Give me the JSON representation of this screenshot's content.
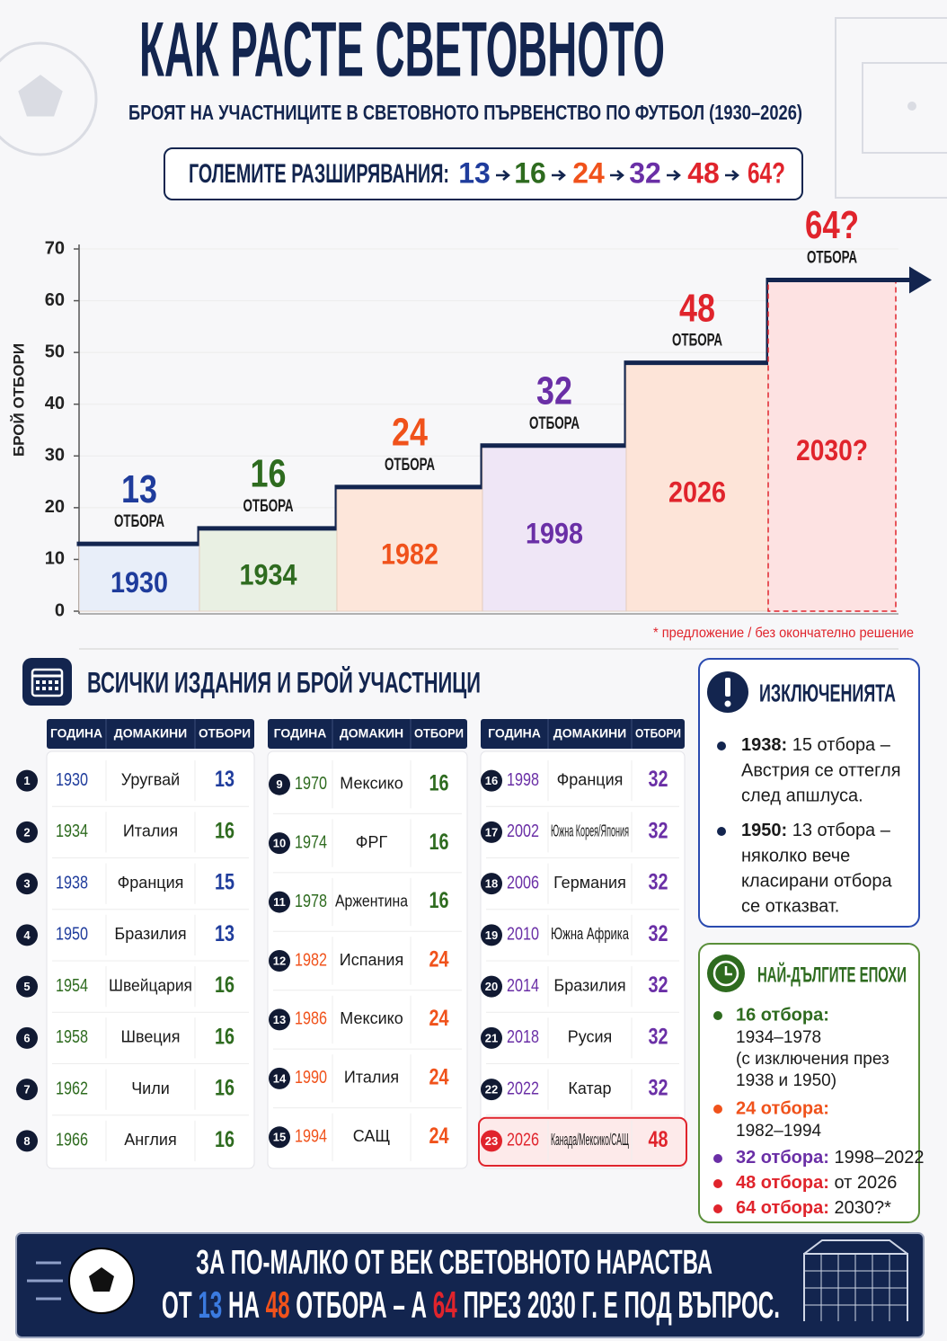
{
  "header": {
    "title": "КАК РАСТЕ СВЕТОВНОТО",
    "subtitle": "БРОЯТ НА УЧАСТНИЦИТЕ В СВЕТОВНОТО ПЪРВЕНСТВО ПО ФУТБОЛ (1930–2026)",
    "expansions_label": "ГОЛЕМИТЕ РАЗШИРЯВАНИЯ:",
    "expansions": [
      {
        "text": "13",
        "color": "#1f3c9c"
      },
      {
        "text": "16",
        "color": "#2e6b1f"
      },
      {
        "text": "24",
        "color": "#f0521b"
      },
      {
        "text": "32",
        "color": "#6a2fa6"
      },
      {
        "text": "48",
        "color": "#e0242c"
      },
      {
        "text": "64?",
        "color": "#e0242c"
      }
    ]
  },
  "chart_data": {
    "type": "step",
    "y_label": "БРОЙ ОТБОРИ",
    "categories": [
      "1930",
      "1934",
      "1982",
      "1998",
      "2026",
      "2030?"
    ],
    "values": [
      13,
      16,
      24,
      32,
      48,
      64
    ],
    "value_labels": [
      "13",
      "16",
      "24",
      "32",
      "48",
      "64?"
    ],
    "unit_label": "ОТБОРА",
    "colors": [
      "#1f3c9c",
      "#2e6b1f",
      "#f0521b",
      "#6a2fa6",
      "#e0242c",
      "#e0242c"
    ],
    "fill_colors": [
      "#e8eef9",
      "#e9f0e3",
      "#fde6da",
      "#efe6f6",
      "#fde4d8",
      "#fde2e2"
    ],
    "line_color": "#13254f",
    "ylim": [
      0,
      70
    ],
    "yticks": [
      0,
      10,
      20,
      30,
      40,
      50,
      60,
      70
    ],
    "grid": true,
    "footnote": "* предложение / без окончателно решение"
  },
  "table": {
    "title": "ВСИЧКИ ИЗДАНИЯ И БРОЙ УЧАСТНИЦИ",
    "panels": [
      {
        "columns": [
          "ГОДИНА",
          "ДОМАКИНИ",
          "ОТБОРИ"
        ],
        "rows": [
          {
            "no": "1",
            "year": "1930",
            "host": "Уругвай",
            "teams": "13",
            "color": "#1f3c9c"
          },
          {
            "no": "2",
            "year": "1934",
            "host": "Италия",
            "teams": "16",
            "color": "#2e6b1f"
          },
          {
            "no": "3",
            "year": "1938",
            "host": "Франция",
            "teams": "15",
            "color": "#1f3c9c"
          },
          {
            "no": "4",
            "year": "1950",
            "host": "Бразилия",
            "teams": "13",
            "color": "#1f3c9c"
          },
          {
            "no": "5",
            "year": "1954",
            "host": "Швейцария",
            "teams": "16",
            "color": "#2e6b1f"
          },
          {
            "no": "6",
            "year": "1958",
            "host": "Швеция",
            "teams": "16",
            "color": "#2e6b1f"
          },
          {
            "no": "7",
            "year": "1962",
            "host": "Чили",
            "teams": "16",
            "color": "#2e6b1f"
          },
          {
            "no": "8",
            "year": "1966",
            "host": "Англия",
            "teams": "16",
            "color": "#2e6b1f"
          }
        ]
      },
      {
        "columns": [
          "ГОДИНА",
          "ДОМАКИН",
          "ОТБОРИ"
        ],
        "rows": [
          {
            "no": "9",
            "year": "1970",
            "host": "Мексико",
            "teams": "16",
            "color": "#2e6b1f"
          },
          {
            "no": "10",
            "year": "1974",
            "host": "ФРГ",
            "teams": "16",
            "color": "#2e6b1f"
          },
          {
            "no": "11",
            "year": "1978",
            "host": "Аржентина",
            "teams": "16",
            "color": "#2e6b1f"
          },
          {
            "no": "12",
            "year": "1982",
            "host": "Испания",
            "teams": "24",
            "color": "#f0521b"
          },
          {
            "no": "13",
            "year": "1986",
            "host": "Мексико",
            "teams": "24",
            "color": "#f0521b"
          },
          {
            "no": "14",
            "year": "1990",
            "host": "Италия",
            "teams": "24",
            "color": "#f0521b"
          },
          {
            "no": "15",
            "year": "1994",
            "host": "САЩ",
            "teams": "24",
            "color": "#f0521b"
          }
        ]
      },
      {
        "columns": [
          "ГОДИНА",
          "ДОМАКИНИ",
          "ОТБОРИ"
        ],
        "rows": [
          {
            "no": "16",
            "year": "1998",
            "host": "Франция",
            "teams": "32",
            "color": "#6a2fa6"
          },
          {
            "no": "17",
            "year": "2002",
            "host": "Южна Корея/Япония",
            "teams": "32",
            "color": "#6a2fa6"
          },
          {
            "no": "18",
            "year": "2006",
            "host": "Германия",
            "teams": "32",
            "color": "#6a2fa6"
          },
          {
            "no": "19",
            "year": "2010",
            "host": "Южна Африка",
            "teams": "32",
            "color": "#6a2fa6"
          },
          {
            "no": "20",
            "year": "2014",
            "host": "Бразилия",
            "teams": "32",
            "color": "#6a2fa6"
          },
          {
            "no": "21",
            "year": "2018",
            "host": "Русия",
            "teams": "32",
            "color": "#6a2fa6"
          },
          {
            "no": "22",
            "year": "2022",
            "host": "Катар",
            "teams": "32",
            "color": "#6a2fa6"
          },
          {
            "no": "23",
            "year": "2026",
            "host": "Канада/Мексико/САЩ",
            "teams": "48",
            "color": "#e0242c"
          }
        ]
      }
    ]
  },
  "exceptions": {
    "title": "ИЗКЛЮЧЕНИЯТА",
    "items": [
      {
        "year": "1938:",
        "lines": [
          " 15 отбора –",
          "Австрия се оттегля",
          "след апшлуса."
        ]
      },
      {
        "year": "1950:",
        "lines": [
          " 13 отбора –",
          "няколко вече",
          "класирани отбора",
          "се отказват."
        ]
      }
    ]
  },
  "eras": {
    "title": "НАЙ-ДЪЛГИТЕ ЕПОХИ",
    "items": [
      {
        "label": "16 отбора:",
        "color": "#2e6b1f",
        "lines": [
          "1934–1978",
          "(с изключения през",
          "1938 и 1950)"
        ]
      },
      {
        "label": "24 отбора:",
        "color": "#f0521b",
        "lines": [
          "1982–1994"
        ]
      },
      {
        "label": "32 отбора:",
        "color": "#6a2fa6",
        "lines": [
          " 1998–2022"
        ]
      },
      {
        "label": "48 отбора:",
        "color": "#e0242c",
        "lines": [
          " от 2026"
        ]
      },
      {
        "label": "64 отбора:",
        "color": "#e0242c",
        "lines": [
          " 2030?*"
        ]
      }
    ]
  },
  "banner": {
    "line1": "ЗА ПО-МАЛКО ОТ ВЕК СВЕТОВНОТО НАРАСТВА",
    "line2": [
      {
        "text": "ОТ ",
        "color": "#ffffff"
      },
      {
        "text": "13",
        "color": "#3b7be0"
      },
      {
        "text": " НА ",
        "color": "#ffffff"
      },
      {
        "text": "48",
        "color": "#f0521b"
      },
      {
        "text": " ОТБОРА – А ",
        "color": "#ffffff"
      },
      {
        "text": "64",
        "color": "#e0242c"
      },
      {
        "text": " ПРЕЗ 2030 Г. Е ПОД ВЪПРОС.",
        "color": "#ffffff"
      }
    ]
  }
}
